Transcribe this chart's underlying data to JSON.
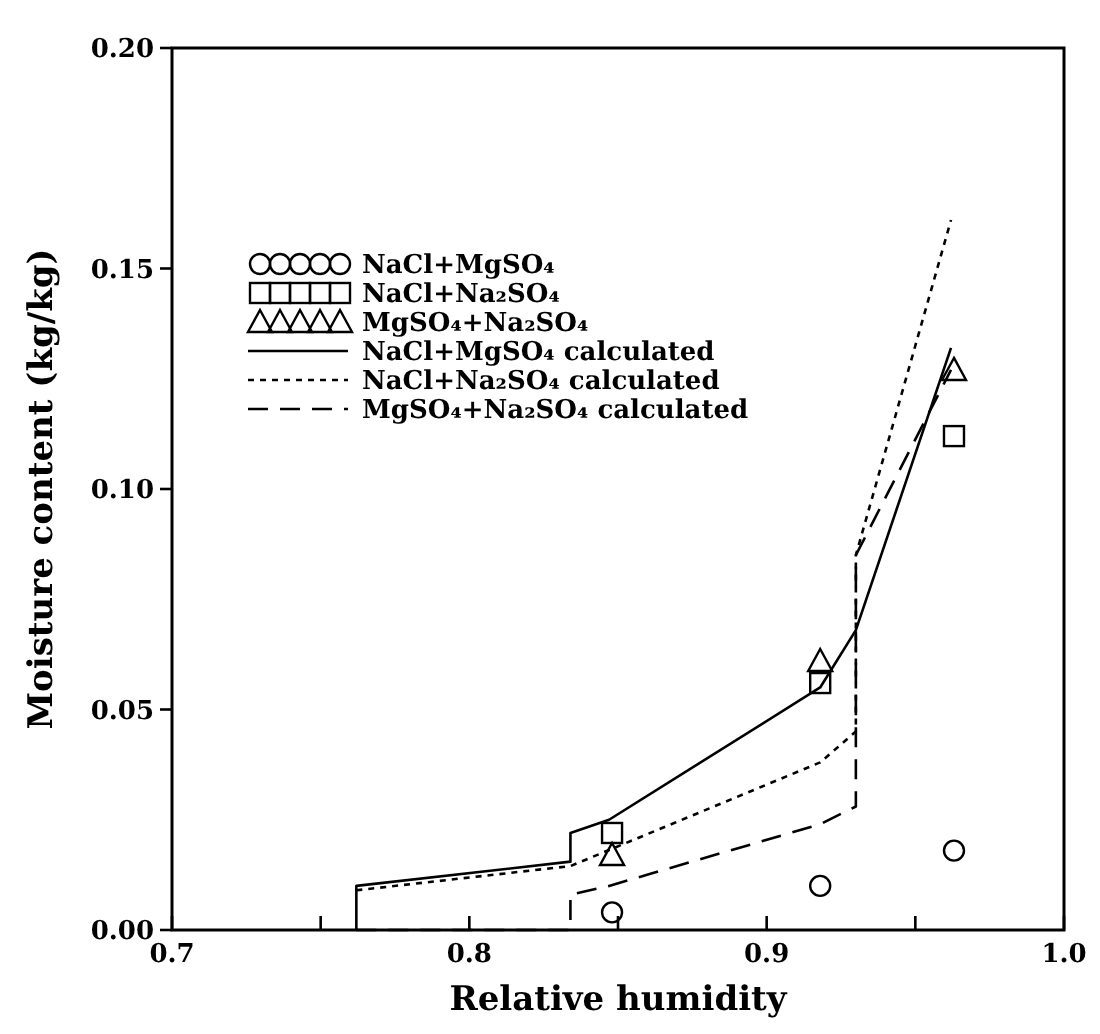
{
  "chart_data": {
    "type": "scatter",
    "xlabel": "Relative humidity",
    "ylabel": "Moisture content (kg/kg)",
    "xlim": [
      0.7,
      1.0
    ],
    "ylim": [
      0,
      0.2
    ],
    "xticks": [
      0.7,
      {
        "value": 0.75,
        "label": null
      },
      0.8,
      {
        "value": 0.85,
        "label": null
      },
      0.9,
      {
        "value": 0.95,
        "label": null
      },
      "1.0"
    ],
    "yticks": [
      {
        "value": 0,
        "label": "0.00"
      },
      0.05,
      {
        "value": 0.1,
        "label": "0.10"
      },
      0.15,
      {
        "value": 0.2,
        "label": "0.20"
      }
    ],
    "grid": false,
    "legend": "top left",
    "series": [
      {
        "name": "NaCl+MgSO₄",
        "marker": "circle",
        "color": "#000000",
        "x": [
          0.848,
          0.918,
          0.963
        ],
        "values": [
          0.004,
          0.01,
          0.018
        ]
      },
      {
        "name": "NaCl+Na₂SO₄",
        "marker": "square",
        "color": "#000000",
        "x": [
          0.848,
          0.918,
          0.963
        ],
        "values": [
          0.022,
          0.056,
          0.112
        ]
      },
      {
        "name": "MgSO₄+Na₂SO₄",
        "marker": "triangle",
        "color": "#000000",
        "x": [
          0.848,
          0.918,
          0.963
        ],
        "values": [
          0.017,
          0.061,
          0.127
        ]
      },
      {
        "name": "NaCl+MgSO₄ calculated",
        "type": "line",
        "line_style": "solid",
        "color": "#000000",
        "x": [
          0.762,
          0.762,
          0.834,
          0.834,
          0.847,
          0.918,
          0.93,
          0.962
        ],
        "values": [
          0,
          0.01,
          0.0155,
          0.022,
          0.025,
          0.055,
          0.068,
          0.132
        ]
      },
      {
        "name": "NaCl+Na₂SO₄ calculated",
        "type": "line",
        "line_style": "dotted",
        "color": "#000000",
        "x": [
          0.762,
          0.834,
          0.918,
          0.93,
          0.93,
          0.962
        ],
        "values": [
          0.009,
          0.0145,
          0.038,
          0.045,
          0.085,
          0.161
        ]
      },
      {
        "name": "MgSO₄+Na₂SO₄ calculated",
        "type": "line",
        "line_style": "dashed",
        "color": "#000000",
        "x": [
          0.762,
          0.834,
          0.834,
          0.847,
          0.918,
          0.93,
          0.93,
          0.962
        ],
        "values": [
          0,
          0,
          0.008,
          0.01,
          0.024,
          0.028,
          0.085,
          0.127
        ]
      }
    ]
  }
}
